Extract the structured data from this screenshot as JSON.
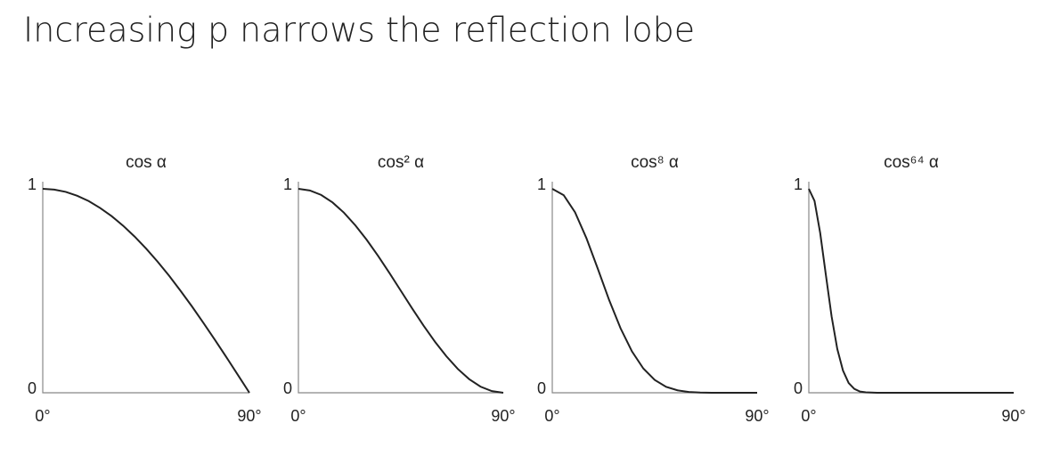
{
  "title": "Increasing p narrows the reflection lobe",
  "chart_data": [
    {
      "type": "line",
      "title": "cos α",
      "color": "#222222",
      "x": [
        0,
        5,
        10,
        15,
        20,
        25,
        30,
        35,
        40,
        45,
        50,
        55,
        60,
        65,
        70,
        75,
        80,
        85,
        90
      ],
      "values": [
        1,
        0.996,
        0.985,
        0.966,
        0.94,
        0.906,
        0.866,
        0.819,
        0.766,
        0.707,
        0.643,
        0.574,
        0.5,
        0.423,
        0.342,
        0.259,
        0.174,
        0.087,
        0
      ],
      "xlim": [
        0,
        90
      ],
      "ylim": [
        0,
        1
      ],
      "xticks": [
        {
          "value": 0,
          "label": "0°"
        },
        {
          "value": 90,
          "label": "90°"
        }
      ],
      "yticks": [
        0,
        1
      ]
    },
    {
      "type": "line",
      "title": "cos² α",
      "color": "#222222",
      "x": [
        0,
        5,
        10,
        15,
        20,
        25,
        30,
        35,
        40,
        45,
        50,
        55,
        60,
        65,
        70,
        75,
        80,
        85,
        90
      ],
      "values": [
        1,
        0.992,
        0.97,
        0.933,
        0.883,
        0.821,
        0.75,
        0.671,
        0.587,
        0.5,
        0.413,
        0.329,
        0.25,
        0.179,
        0.117,
        0.067,
        0.03,
        0.008,
        0
      ],
      "xlim": [
        0,
        90
      ],
      "ylim": [
        0,
        1
      ],
      "xticks": [
        {
          "value": 0,
          "label": "0°"
        },
        {
          "value": 90,
          "label": "90°"
        }
      ],
      "yticks": [
        0,
        1
      ]
    },
    {
      "type": "line",
      "title": "cos⁸ α",
      "color": "#222222",
      "x": [
        0,
        5,
        10,
        15,
        20,
        25,
        30,
        35,
        40,
        45,
        50,
        55,
        60,
        65,
        70,
        75,
        80,
        85,
        90
      ],
      "values": [
        1,
        0.969,
        0.885,
        0.758,
        0.608,
        0.454,
        0.316,
        0.203,
        0.119,
        0.063,
        0.029,
        0.012,
        0.004,
        0.001,
        0,
        0,
        0,
        0,
        0
      ],
      "xlim": [
        0,
        90
      ],
      "ylim": [
        0,
        1
      ],
      "xticks": [
        {
          "value": 0,
          "label": "0°"
        },
        {
          "value": 90,
          "label": "90°"
        }
      ],
      "yticks": [
        0,
        1
      ]
    },
    {
      "type": "line",
      "title": "cos⁶⁴ α",
      "color": "#222222",
      "x": [
        0,
        2.5,
        5,
        7.5,
        10,
        12.5,
        15,
        17.5,
        20,
        22.5,
        25,
        30,
        40,
        50,
        60,
        70,
        80,
        90
      ],
      "values": [
        1,
        0.941,
        0.783,
        0.577,
        0.375,
        0.215,
        0.109,
        0.048,
        0.019,
        0.006,
        0.002,
        0,
        0,
        0,
        0,
        0,
        0,
        0
      ],
      "xlim": [
        0,
        90
      ],
      "ylim": [
        0,
        1
      ],
      "xticks": [
        {
          "value": 0,
          "label": "0°"
        },
        {
          "value": 90,
          "label": "90°"
        }
      ],
      "yticks": [
        0,
        1
      ]
    }
  ]
}
